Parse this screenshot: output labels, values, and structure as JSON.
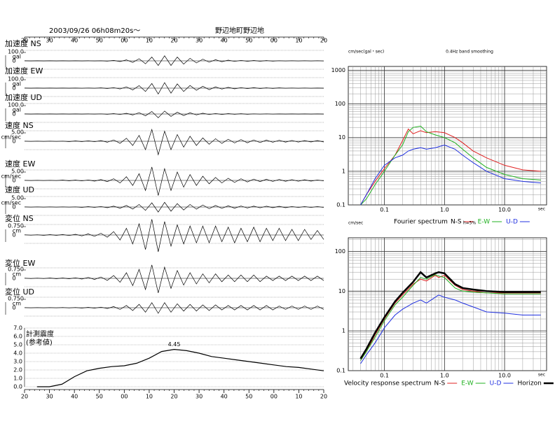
{
  "chart_data": [
    {
      "type": "waveform",
      "date": "2003/09/26  06h08m20s～",
      "location": "野辺地町野辺地",
      "time_ticks": [
        "20",
        "30",
        "40",
        "50",
        "00",
        "10",
        "20",
        "30",
        "40",
        "50",
        "00",
        "10",
        "20"
      ],
      "traces": [
        {
          "label": "加速度 NS",
          "scale": {
            "value": 100,
            "label": "100.0"
          },
          "unit": "gal",
          "zero": 0,
          "values": [
            1,
            -1,
            1,
            -1,
            1,
            -1,
            1,
            -1,
            1,
            -1,
            1,
            -1,
            1,
            -3,
            5,
            -8,
            12,
            -18,
            25,
            -35,
            45,
            -55,
            60,
            -55,
            45,
            -38,
            30,
            -25,
            20,
            -16,
            13,
            -10,
            8,
            -7,
            6,
            -5,
            4,
            -4,
            3,
            -3,
            2,
            -2,
            2,
            -2,
            2,
            -2,
            2,
            -2
          ]
        },
        {
          "label": "加速度 EW",
          "scale": {
            "value": 100,
            "label": "100.0"
          },
          "unit": "gal",
          "zero": 0,
          "values": [
            1,
            -1,
            1,
            -1,
            1,
            -1,
            1,
            -1,
            1,
            -2,
            2,
            -2,
            3,
            -4,
            6,
            -10,
            15,
            -22,
            30,
            -40,
            55,
            -70,
            65,
            -60,
            50,
            -40,
            32,
            -26,
            22,
            -18,
            14,
            -11,
            9,
            -8,
            6,
            -5,
            5,
            -4,
            3,
            -3,
            3,
            -2,
            2,
            -2,
            2,
            -2,
            1,
            -1
          ]
        },
        {
          "label": "加速度 UD",
          "scale": {
            "value": 100,
            "label": "100.0"
          },
          "unit": "gal",
          "zero": 0,
          "values": [
            1,
            -1,
            1,
            -1,
            1,
            -1,
            1,
            -1,
            1,
            -1,
            1,
            -1,
            2,
            -3,
            4,
            -6,
            8,
            -12,
            16,
            -22,
            30,
            -45,
            35,
            -28,
            22,
            -18,
            14,
            -11,
            9,
            -7,
            6,
            -5,
            4,
            -3,
            3,
            -3,
            2,
            -2,
            2,
            -2,
            1,
            -1,
            1,
            -1,
            1,
            -1,
            1,
            -1
          ]
        },
        {
          "label": "速度 NS",
          "scale": {
            "value": 5,
            "label": "5.00"
          },
          "unit": "cm/sec",
          "zero": 0,
          "values": [
            0.1,
            -0.1,
            0.1,
            -0.1,
            0.1,
            -0.1,
            0.1,
            -0.2,
            0.2,
            -0.2,
            0.3,
            -0.3,
            0.4,
            -0.6,
            0.8,
            -1.2,
            1.8,
            -2.5,
            3.5,
            -5,
            7,
            -8,
            6,
            -5,
            4,
            -3.5,
            3,
            -2.5,
            2,
            -1.8,
            1.5,
            -1.3,
            1.2,
            -1,
            1,
            -0.9,
            0.8,
            -0.8,
            0.7,
            -0.6,
            0.6,
            -0.5,
            0.5,
            -0.5,
            0.4,
            -0.4,
            0.4,
            -0.4
          ]
        },
        {
          "label": "速度 EW",
          "scale": {
            "value": 5,
            "label": "5.00"
          },
          "unit": "cm/sec",
          "zero": 0,
          "values": [
            0.1,
            -0.1,
            0.1,
            -0.1,
            0.1,
            -0.1,
            0.2,
            -0.2,
            0.2,
            -0.3,
            0.3,
            -0.4,
            0.5,
            -0.7,
            1,
            -1.5,
            2.2,
            -3,
            4,
            -6,
            8,
            -9,
            7,
            -6,
            5,
            -4,
            3.5,
            -3,
            2.5,
            -2,
            1.8,
            -1.5,
            1.3,
            -1.2,
            1,
            -0.9,
            0.8,
            -0.7,
            0.7,
            -0.6,
            0.6,
            -0.5,
            0.5,
            -0.5,
            0.4,
            -0.4,
            0.3,
            -0.3
          ]
        },
        {
          "label": "速度 UD",
          "scale": {
            "value": 5,
            "label": "5.00"
          },
          "unit": "cm/sec",
          "zero": 0,
          "values": [
            0.1,
            -0.1,
            0.1,
            -0.1,
            0.1,
            -0.1,
            0.1,
            -0.1,
            0.1,
            -0.2,
            0.2,
            -0.2,
            0.3,
            -0.4,
            0.5,
            -0.7,
            0.9,
            -1.2,
            1.5,
            -2,
            2.5,
            -3,
            2.8,
            -2.5,
            2,
            -1.8,
            1.5,
            -1.3,
            1.2,
            -1,
            0.9,
            -0.8,
            0.7,
            -0.7,
            0.6,
            -0.6,
            0.5,
            -0.5,
            0.5,
            -0.4,
            0.4,
            -0.4,
            0.3,
            -0.3,
            0.3,
            -0.3,
            0.3,
            -0.3
          ]
        },
        {
          "label": "変位 NS",
          "scale": {
            "value": 0.75,
            "label": "0.750"
          },
          "unit": "cm",
          "zero": 0,
          "values": [
            0.02,
            -0.02,
            0.02,
            -0.03,
            0.03,
            -0.03,
            0.04,
            -0.05,
            0.06,
            -0.08,
            0.1,
            -0.12,
            0.15,
            -0.2,
            0.3,
            -0.45,
            0.6,
            -0.8,
            1.0,
            -1.3,
            1.4,
            -1.5,
            1.2,
            -1,
            0.9,
            -0.8,
            0.8,
            -0.7,
            0.8,
            -0.7,
            0.8,
            -0.6,
            0.7,
            -0.7,
            0.6,
            -0.6,
            0.7,
            -0.6,
            0.6,
            -0.5,
            0.6,
            -0.5,
            0.5,
            -0.5,
            0.5,
            -0.4,
            0.4,
            -0.4
          ]
        },
        {
          "label": "変位 EW",
          "scale": {
            "value": 0.75,
            "label": "0.750"
          },
          "unit": "cm",
          "zero": 0,
          "values": [
            0.02,
            -0.02,
            0.02,
            -0.02,
            0.03,
            -0.03,
            0.03,
            -0.04,
            0.05,
            -0.06,
            0.08,
            -0.1,
            0.12,
            -0.18,
            0.25,
            -0.35,
            0.5,
            -0.65,
            0.8,
            -1,
            1.2,
            -1.3,
            1,
            -0.9,
            0.7,
            -0.6,
            0.5,
            -0.5,
            0.4,
            -0.4,
            0.4,
            -0.3,
            0.3,
            -0.3,
            0.3,
            -0.3,
            0.3,
            -0.3,
            0.2,
            -0.2,
            0.2,
            -0.2,
            0.2,
            -0.2,
            0.2,
            -0.2,
            0.2,
            -0.2
          ]
        },
        {
          "label": "変位 UD",
          "scale": {
            "value": 0.75,
            "label": "0.750"
          },
          "unit": "cm",
          "zero": 0,
          "values": [
            0.01,
            -0.01,
            0.01,
            -0.01,
            0.01,
            -0.01,
            0.02,
            -0.02,
            0.02,
            -0.03,
            0.03,
            -0.04,
            0.05,
            -0.07,
            0.1,
            -0.15,
            0.2,
            -0.25,
            0.3,
            -0.4,
            0.45,
            -0.5,
            0.45,
            -0.4,
            0.35,
            -0.3,
            0.3,
            -0.3,
            0.25,
            -0.25,
            0.25,
            -0.2,
            0.2,
            -0.2,
            0.2,
            -0.2,
            0.2,
            -0.2,
            0.2,
            -0.2,
            0.15,
            -0.15,
            0.15,
            -0.15,
            0.15,
            -0.15,
            0.15,
            -0.15
          ]
        }
      ]
    },
    {
      "type": "line",
      "ylabel": [
        "計測震度",
        "(参考値)"
      ],
      "color": "#000000",
      "values": [
        null,
        0,
        0,
        0.3,
        1.2,
        1.9,
        2.2,
        2.4,
        2.5,
        2.8,
        3.4,
        4.2,
        4.45,
        4.3,
        4.0,
        3.6,
        3.4,
        3.2,
        3.0,
        2.8,
        2.6,
        2.4,
        2.3,
        2.1,
        1.9
      ],
      "value_labels": [
        null,
        null,
        null,
        null,
        null,
        null,
        null,
        null,
        null,
        null,
        null,
        null,
        "4.45",
        null,
        null,
        null,
        null,
        null,
        null,
        null,
        null,
        null,
        null,
        null,
        null
      ],
      "ylim": [
        0,
        7
      ],
      "yticks": [
        {
          "value": 0,
          "label": "0.0"
        },
        {
          "value": 1,
          "label": "1.0"
        },
        {
          "value": 2,
          "label": "2.0"
        },
        {
          "value": 3,
          "label": "3.0"
        },
        {
          "value": 4,
          "label": "4.0"
        },
        {
          "value": 5,
          "label": "5.0"
        },
        {
          "value": 6,
          "label": "6.0"
        },
        {
          "value": 7,
          "label": "7.0"
        }
      ],
      "grid": true
    },
    {
      "type": "line",
      "title": "Fourier spectrum",
      "ylabel": "cm/sec(gal・sec)",
      "note": "0.4Hz band smoothing",
      "xlabel": "sec",
      "log": true,
      "xlim": [
        0.025,
        50
      ],
      "ylim": [
        0.1,
        1300
      ],
      "xticks": [
        0.1,
        {
          "value": 1,
          "label": "1.0"
        },
        {
          "value": 10,
          "label": "10.0"
        }
      ],
      "yticks": [
        0.1,
        1,
        10,
        100,
        1000
      ],
      "x": [
        0.04,
        0.05,
        0.07,
        0.1,
        0.15,
        0.2,
        0.25,
        0.3,
        0.4,
        0.5,
        0.7,
        1.0,
        1.5,
        2,
        3,
        5,
        10,
        20,
        40
      ],
      "series": [
        {
          "name": "N-S",
          "color": "#e02020",
          "width": 1,
          "values": [
            0.1,
            0.2,
            0.5,
            1.2,
            3,
            8,
            18,
            13,
            16,
            14,
            15,
            14,
            10,
            7,
            4,
            2.5,
            1.5,
            1.1,
            1.0
          ]
        },
        {
          "name": "E-W",
          "color": "#20b020",
          "width": 1,
          "values": [
            0.1,
            0.15,
            0.4,
            1.0,
            3,
            6,
            15,
            20,
            22,
            15,
            12,
            10,
            7,
            4.5,
            2.5,
            1.3,
            0.8,
            0.6,
            0.55
          ]
        },
        {
          "name": "U-D",
          "color": "#2030e0",
          "width": 1,
          "values": [
            0.1,
            0.2,
            0.6,
            1.5,
            2.5,
            3,
            4,
            4.5,
            5,
            4.5,
            5,
            6,
            4.5,
            3,
            1.8,
            1,
            0.6,
            0.5,
            0.45
          ]
        }
      ]
    },
    {
      "type": "line",
      "title": "Velocity response spectrum",
      "ylabel": "cm/sec",
      "note": "h=5%",
      "xlabel": "sec",
      "log": true,
      "xlim": [
        0.025,
        50
      ],
      "ylim": [
        0.1,
        220
      ],
      "xticks": [
        0.1,
        {
          "value": 1,
          "label": "1.0"
        },
        {
          "value": 10,
          "label": "10.0"
        }
      ],
      "yticks": [
        0.1,
        1,
        10,
        100
      ],
      "x": [
        0.04,
        0.05,
        0.07,
        0.1,
        0.15,
        0.2,
        0.3,
        0.4,
        0.5,
        0.7,
        0.8,
        1.0,
        1.5,
        2,
        3,
        5,
        10,
        20,
        40
      ],
      "series": [
        {
          "name": "N-S",
          "color": "#e02020",
          "width": 1,
          "values": [
            0.18,
            0.3,
            0.8,
            2,
            5,
            8,
            15,
            20,
            18,
            25,
            22,
            25,
            14,
            11,
            10,
            9,
            9,
            9,
            9
          ]
        },
        {
          "name": "E-W",
          "color": "#20b020",
          "width": 1,
          "values": [
            0.18,
            0.3,
            0.7,
            1.8,
            4.5,
            7,
            14,
            22,
            20,
            26,
            24,
            22,
            12,
            10,
            9.5,
            9,
            8.5,
            8.5,
            8.5
          ]
        },
        {
          "name": "U-D",
          "color": "#2030e0",
          "width": 1,
          "values": [
            0.15,
            0.25,
            0.5,
            1.2,
            2.5,
            3.5,
            5,
            6,
            5,
            7,
            8,
            7,
            6,
            5,
            4,
            3,
            2.8,
            2.5,
            2.5
          ]
        },
        {
          "name": "Horizon",
          "color": "#000000",
          "width": 2.5,
          "values": [
            0.2,
            0.35,
            0.9,
            2.2,
            5.5,
            9,
            17,
            30,
            22,
            28,
            30,
            28,
            15,
            12,
            11,
            10,
            9.5,
            9.5,
            9.5
          ]
        }
      ]
    }
  ]
}
